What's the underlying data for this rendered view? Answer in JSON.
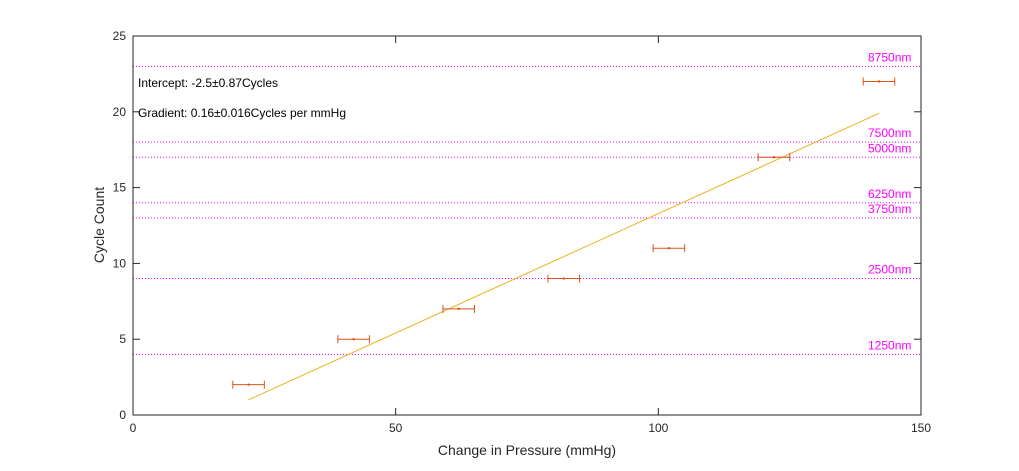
{
  "chart_data": {
    "type": "scatter",
    "xlabel": "Change in Pressure (mmHg)",
    "ylabel": "Cycle Count",
    "xlim": [
      0,
      150
    ],
    "ylim": [
      0,
      25
    ],
    "xticks": [
      0,
      50,
      100,
      150
    ],
    "yticks": [
      0,
      5,
      10,
      15,
      20,
      25
    ],
    "grid": false,
    "box": true,
    "series": [
      {
        "kind": "errorbar",
        "color": "#d95319",
        "points": [
          {
            "x": 22,
            "y": 2,
            "xerr": 3
          },
          {
            "x": 42,
            "y": 5,
            "xerr": 3
          },
          {
            "x": 62,
            "y": 7,
            "xerr": 3
          },
          {
            "x": 82,
            "y": 9,
            "xerr": 3
          },
          {
            "x": 102,
            "y": 11,
            "xerr": 3
          },
          {
            "x": 122,
            "y": 17,
            "xerr": 3
          },
          {
            "x": 142,
            "y": 22,
            "xerr": 3
          }
        ]
      },
      {
        "kind": "fit-line",
        "color": "#edb120",
        "x": [
          22,
          142
        ],
        "y": [
          1.0,
          19.9
        ]
      }
    ],
    "reference_lines": {
      "color": "#ff00ff",
      "style": "dotted",
      "values": [
        23,
        18,
        17,
        14,
        13,
        9,
        4
      ]
    },
    "reference_labels": [
      {
        "text": "8750nm",
        "y": 23
      },
      {
        "text": "7500nm",
        "y": 18
      },
      {
        "text": "5000nm",
        "y": 17
      },
      {
        "text": "6250nm",
        "y": 14
      },
      {
        "text": "3750nm",
        "y": 13
      },
      {
        "text": "2500nm",
        "y": 9
      },
      {
        "text": "1250nm",
        "y": 4
      }
    ],
    "annotations": {
      "intercept": "Intercept: -2.5±0.87Cycles",
      "gradient": "Gradient: 0.16±0.016Cycles per mmHg"
    }
  }
}
